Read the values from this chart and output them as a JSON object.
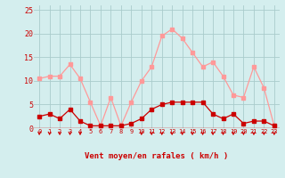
{
  "x": [
    0,
    1,
    2,
    3,
    4,
    5,
    6,
    7,
    8,
    9,
    10,
    11,
    12,
    13,
    14,
    15,
    16,
    17,
    18,
    19,
    20,
    21,
    22,
    23
  ],
  "vent_moyen": [
    2.5,
    3.0,
    2.0,
    4.0,
    1.5,
    0.5,
    0.5,
    0.5,
    0.5,
    1.0,
    2.0,
    4.0,
    5.0,
    5.5,
    5.5,
    5.5,
    5.5,
    3.0,
    2.0,
    3.0,
    1.0,
    1.5,
    1.5,
    0.5
  ],
  "rafales": [
    10.5,
    11.0,
    11.0,
    13.5,
    10.5,
    5.5,
    0.5,
    6.5,
    0.5,
    5.5,
    10.0,
    13.0,
    19.5,
    21.0,
    19.0,
    16.0,
    13.0,
    14.0,
    11.0,
    7.0,
    6.5,
    13.0,
    8.5,
    0.5
  ],
  "xlabel": "Vent moyen/en rafales ( km/h )",
  "ylim": [
    0,
    26
  ],
  "yticks": [
    0,
    5,
    10,
    15,
    20,
    25
  ],
  "background_color": "#d4eeee",
  "grid_color": "#aacccc",
  "line_color_moyen": "#cc0000",
  "line_color_rafales": "#ff9999",
  "arrow_hours": [
    0,
    1,
    2,
    3,
    4,
    10,
    11,
    12,
    13,
    14,
    15,
    16,
    17,
    18,
    19,
    20,
    21,
    22,
    23
  ]
}
